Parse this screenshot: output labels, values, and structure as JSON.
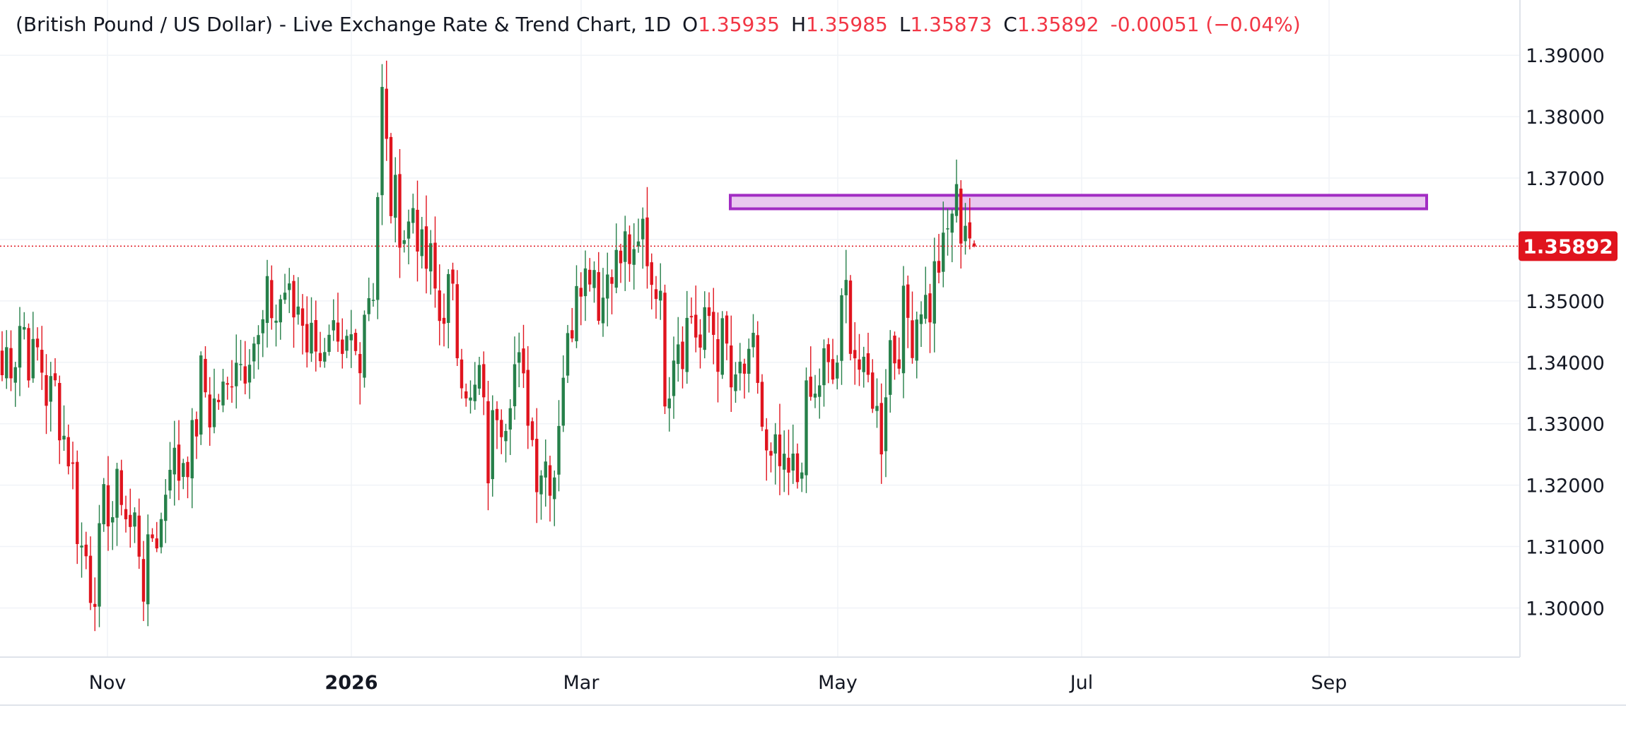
{
  "header": {
    "title": "(British Pound / US Dollar) - Live Exchange Rate & Trend Chart, 1D",
    "o_label": "O",
    "o_value": "1.35935",
    "h_label": "H",
    "h_value": "1.35985",
    "l_label": "L",
    "l_value": "1.35873",
    "c_label": "C",
    "c_value": "1.35892",
    "change": "-0.00051 (−0.04%)"
  },
  "colors": {
    "up": "#26804a",
    "down": "#e0141e",
    "grid": "#f0f3f7",
    "axis_border": "#dfe3ea",
    "price_line": "#e0141e",
    "zone_fill": "#e9c7ef",
    "zone_border": "#a22cc3",
    "text": "#131722"
  },
  "chart_data": {
    "type": "candlestick",
    "title": "(British Pound / US Dollar) - Live Exchange Rate & Trend Chart, 1D",
    "interval": "1D",
    "x_ticks": [
      "Nov",
      "2026",
      "Mar",
      "May",
      "Jul",
      "Sep"
    ],
    "y_ticks": [
      "1.30000",
      "1.31000",
      "1.32000",
      "1.33000",
      "1.34000",
      "1.35000",
      "1.36000",
      "1.37000",
      "1.38000",
      "1.39000"
    ],
    "ylim": [
      1.292,
      1.399
    ],
    "grid": true,
    "last_price_label": "1.35892",
    "last_price": 1.35892,
    "last_bar": {
      "open": 1.35935,
      "high": 1.35985,
      "low": 1.35873,
      "close": 1.35892
    },
    "resistance_zone": {
      "low": 1.365,
      "high": 1.3672
    },
    "anchors": [
      [
        0,
        1.338
      ],
      [
        4,
        1.3455
      ],
      [
        10,
        1.337
      ],
      [
        14,
        1.33
      ],
      [
        17,
        1.315
      ],
      [
        20,
        1.303
      ],
      [
        24,
        1.317
      ],
      [
        27,
        1.318
      ],
      [
        30,
        1.3125
      ],
      [
        32,
        1.306
      ],
      [
        35,
        1.312
      ],
      [
        38,
        1.324
      ],
      [
        42,
        1.324
      ],
      [
        45,
        1.3355
      ],
      [
        49,
        1.3325
      ],
      [
        53,
        1.341
      ],
      [
        57,
        1.343
      ],
      [
        61,
        1.349
      ],
      [
        65,
        1.3505
      ],
      [
        69,
        1.346
      ],
      [
        73,
        1.341
      ],
      [
        77,
        1.3395
      ],
      [
        81,
        1.344
      ],
      [
        84,
        1.355
      ],
      [
        86,
        1.381
      ],
      [
        88,
        1.368
      ],
      [
        90,
        1.362
      ],
      [
        93,
        1.364
      ],
      [
        96,
        1.356
      ],
      [
        99,
        1.349
      ],
      [
        102,
        1.35
      ],
      [
        104,
        1.339
      ],
      [
        106,
        1.334
      ],
      [
        108,
        1.336
      ],
      [
        110,
        1.325
      ],
      [
        112,
        1.332
      ],
      [
        115,
        1.336
      ],
      [
        117,
        1.34
      ],
      [
        120,
        1.327
      ],
      [
        123,
        1.322
      ],
      [
        125,
        1.3245
      ],
      [
        127,
        1.338
      ],
      [
        130,
        1.354
      ],
      [
        133,
        1.357
      ],
      [
        135,
        1.351
      ],
      [
        138,
        1.356
      ],
      [
        140,
        1.358
      ],
      [
        143,
        1.356
      ],
      [
        145,
        1.36
      ],
      [
        148,
        1.354
      ],
      [
        150,
        1.338
      ],
      [
        152,
        1.342
      ],
      [
        155,
        1.347
      ],
      [
        158,
        1.344
      ],
      [
        161,
        1.346
      ],
      [
        164,
        1.34
      ],
      [
        166,
        1.335
      ],
      [
        168,
        1.338
      ],
      [
        170,
        1.341
      ],
      [
        172,
        1.33
      ],
      [
        174,
        1.321
      ],
      [
        176,
        1.324
      ],
      [
        178,
        1.319
      ],
      [
        180,
        1.323
      ],
      [
        183,
        1.334
      ],
      [
        186,
        1.338
      ],
      [
        189,
        1.339
      ],
      [
        191,
        1.353
      ],
      [
        193,
        1.34
      ],
      [
        195,
        1.338
      ],
      [
        197,
        1.334
      ],
      [
        199,
        1.33
      ],
      [
        201,
        1.342
      ],
      [
        204,
        1.346
      ],
      [
        207,
        1.348
      ],
      [
        210,
        1.351
      ],
      [
        212,
        1.355
      ],
      [
        214,
        1.362
      ],
      [
        216,
        1.365
      ],
      [
        218,
        1.364
      ],
      [
        219,
        1.359
      ],
      [
        220,
        1.3589
      ]
    ]
  }
}
